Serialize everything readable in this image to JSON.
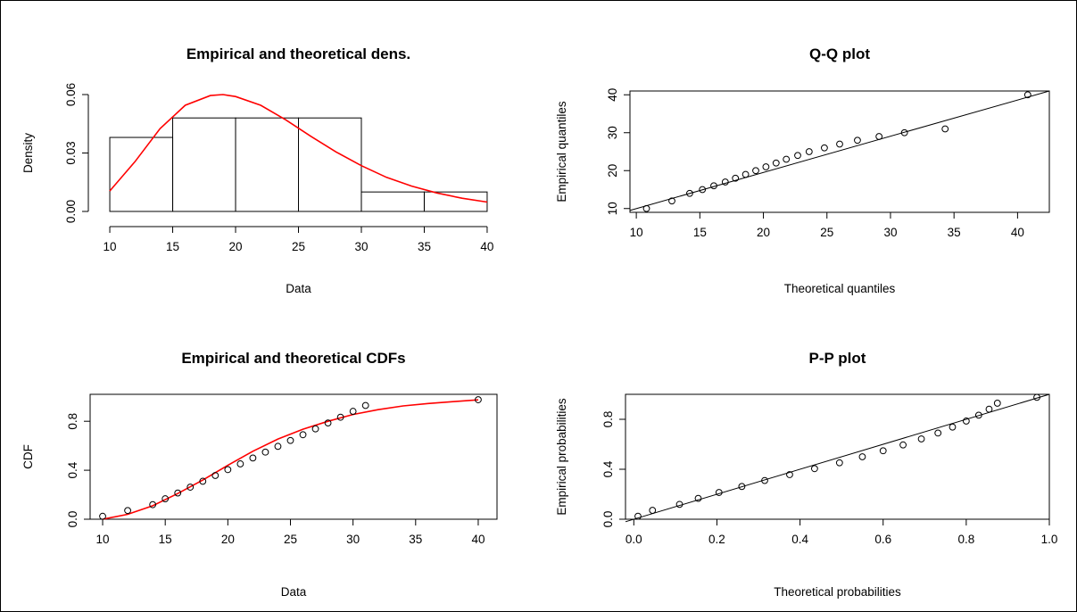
{
  "chart_data": [
    {
      "id": "density",
      "type": "histogram",
      "title": "Empirical and theoretical dens.",
      "xlabel": "Data",
      "ylabel": "Density",
      "xlim": [
        9.5,
        40.5
      ],
      "ylim": [
        0,
        0.06
      ],
      "xticks": [
        "10",
        "15",
        "20",
        "25",
        "30",
        "35",
        "40"
      ],
      "yticks": [
        "0.00",
        "0.03",
        "0.06"
      ],
      "bins": [
        {
          "from": 10,
          "to": 15,
          "density": 0.038
        },
        {
          "from": 15,
          "to": 20,
          "density": 0.048
        },
        {
          "from": 20,
          "to": 25,
          "density": 0.048
        },
        {
          "from": 25,
          "to": 30,
          "density": 0.048
        },
        {
          "from": 30,
          "to": 35,
          "density": 0.01
        },
        {
          "from": 35,
          "to": 40,
          "density": 0.01
        }
      ],
      "curve": {
        "color": "#ff0000",
        "x": [
          10,
          12,
          14,
          16,
          18,
          19,
          20,
          22,
          24,
          26,
          28,
          30,
          32,
          34,
          36,
          38,
          40
        ],
        "y": [
          0.0105,
          0.0255,
          0.0425,
          0.0545,
          0.0595,
          0.06,
          0.059,
          0.0545,
          0.047,
          0.0385,
          0.0305,
          0.0235,
          0.0175,
          0.013,
          0.0095,
          0.0068,
          0.0048
        ]
      }
    },
    {
      "id": "qq",
      "type": "scatter",
      "title": "Q-Q plot",
      "xlabel": "Theoretical quantiles",
      "ylabel": "Empirical quantiles",
      "xlim": [
        9.5,
        42.5
      ],
      "ylim": [
        9,
        41
      ],
      "xticks": [
        "10",
        "15",
        "20",
        "25",
        "30",
        "35",
        "40"
      ],
      "yticks": [
        "10",
        "20",
        "30",
        "40"
      ],
      "points": {
        "x": [
          10.8,
          12.8,
          14.2,
          15.2,
          16.1,
          17.0,
          17.8,
          18.6,
          19.4,
          20.2,
          21.0,
          21.8,
          22.7,
          23.6,
          24.8,
          26.0,
          27.4,
          29.1,
          31.1,
          34.3,
          40.8
        ],
        "y": [
          10,
          12,
          14,
          15,
          16,
          17,
          18,
          19,
          20,
          21,
          22,
          23,
          24,
          25,
          26,
          27,
          28,
          29,
          30,
          31,
          40
        ]
      },
      "reference_line": {
        "from": [
          9.5,
          9.5
        ],
        "to": [
          42.5,
          41.0
        ]
      }
    },
    {
      "id": "cdf",
      "type": "line",
      "title": "Empirical and theoretical CDFs",
      "xlabel": "Data",
      "ylabel": "CDF",
      "xlim": [
        9,
        41.5
      ],
      "ylim": [
        0,
        1.02
      ],
      "xticks": [
        "10",
        "15",
        "20",
        "25",
        "30",
        "35",
        "40"
      ],
      "yticks": [
        "0.0",
        "0.4",
        "0.8"
      ],
      "points": {
        "x": [
          10,
          12,
          14,
          15,
          16,
          17,
          18,
          19,
          20,
          21,
          22,
          23,
          24,
          25,
          26,
          27,
          28,
          29,
          30,
          31,
          40
        ],
        "y": [
          0.024,
          0.071,
          0.119,
          0.167,
          0.214,
          0.262,
          0.31,
          0.357,
          0.405,
          0.452,
          0.5,
          0.548,
          0.595,
          0.643,
          0.69,
          0.738,
          0.786,
          0.833,
          0.881,
          0.929,
          0.976
        ]
      },
      "curve": {
        "color": "#ff0000",
        "x": [
          10,
          12,
          14,
          16,
          18,
          20,
          22,
          24,
          26,
          28,
          30,
          32,
          34,
          36,
          38,
          40
        ],
        "y": [
          0.0,
          0.04,
          0.11,
          0.21,
          0.32,
          0.44,
          0.555,
          0.655,
          0.735,
          0.8,
          0.855,
          0.895,
          0.925,
          0.945,
          0.96,
          0.975
        ]
      }
    },
    {
      "id": "pp",
      "type": "scatter",
      "title": "P-P plot",
      "xlabel": "Theoretical probabilities",
      "ylabel": "Empirical probabilities",
      "xlim": [
        -0.02,
        1.0
      ],
      "ylim": [
        0,
        1.0
      ],
      "xticks": [
        "0.0",
        "0.2",
        "0.4",
        "0.6",
        "0.8",
        "1.0"
      ],
      "yticks": [
        "0.0",
        "0.4",
        "0.8"
      ],
      "points": {
        "x": [
          0.01,
          0.045,
          0.11,
          0.155,
          0.205,
          0.26,
          0.315,
          0.375,
          0.435,
          0.495,
          0.55,
          0.6,
          0.648,
          0.692,
          0.732,
          0.767,
          0.8,
          0.83,
          0.855,
          0.875,
          0.97
        ],
        "y": [
          0.024,
          0.071,
          0.119,
          0.167,
          0.214,
          0.262,
          0.31,
          0.357,
          0.405,
          0.452,
          0.5,
          0.548,
          0.595,
          0.643,
          0.69,
          0.738,
          0.786,
          0.833,
          0.881,
          0.929,
          0.976
        ]
      },
      "reference_line": {
        "from": [
          -0.02,
          -0.02
        ],
        "to": [
          1.0,
          1.0
        ]
      }
    }
  ]
}
